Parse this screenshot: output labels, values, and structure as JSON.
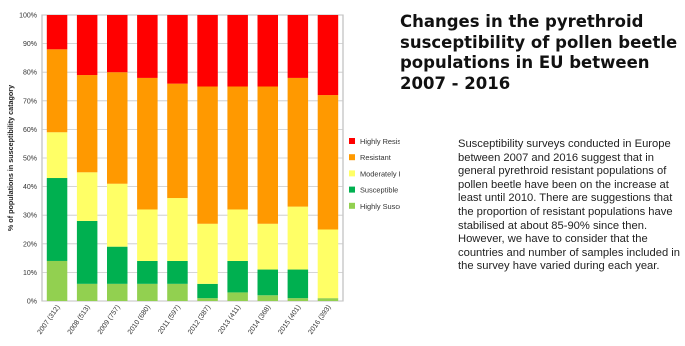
{
  "title": "Changes in the pyrethroid\nsusceptibility of pollen beetle\npopulations in EU between\n2007 - 2016",
  "paragraph": "Susceptibility surveys conducted in Europe between 2007 and 2016 suggest that in general pyrethroid resistant populations of pollen beetle have been on the increase at least until 2010. There are suggestions that the proportion of resistant populations have stabilised at about 85-90% since then. However, we have to consider that the countries  and number of samples included in the survey have varied during each year.",
  "chart_data": {
    "type": "bar",
    "stacked": true,
    "categories": [
      "2007 (312)",
      "2008 (513)",
      "2009 (757)",
      "2010 (680)",
      "2011 (597)",
      "2012 (387)",
      "2013 (411)",
      "2014 (368)",
      "2015 (401)",
      "2016 (393)"
    ],
    "ylabel": "% of populations in susceptibility catagory",
    "ylim": [
      0,
      100
    ],
    "yticks": [
      "0%",
      "10%",
      "20%",
      "30%",
      "40%",
      "50%",
      "60%",
      "70%",
      "80%",
      "90%",
      "100%"
    ],
    "grid": true,
    "legend_position": "right",
    "series": [
      {
        "name": "Highly Susceptible",
        "color": "#92d050",
        "values": [
          14,
          6,
          6,
          6,
          6,
          1,
          3,
          2,
          1,
          1
        ]
      },
      {
        "name": "Susceptible",
        "color": "#00b050",
        "values": [
          29,
          22,
          13,
          8,
          8,
          5,
          11,
          9,
          10,
          0
        ]
      },
      {
        "name": "Moderately Resistant",
        "color": "#ffff66",
        "values": [
          16,
          17,
          22,
          18,
          22,
          21,
          18,
          16,
          22,
          24
        ]
      },
      {
        "name": "Resistant",
        "color": "#ff9900",
        "values": [
          29,
          34,
          39,
          46,
          40,
          48,
          43,
          48,
          45,
          47
        ]
      },
      {
        "name": "Highly Resistant",
        "color": "#ff0000",
        "values": [
          12,
          21,
          20,
          22,
          24,
          25,
          25,
          25,
          22,
          28
        ]
      }
    ]
  }
}
